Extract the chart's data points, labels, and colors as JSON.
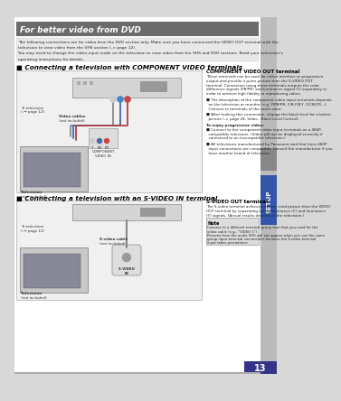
{
  "page_bg": "#d8d8d8",
  "content_bg": "#ffffff",
  "title_bar_color": "#6b6b6b",
  "title_text": "For better video from DVD",
  "title_text_color": "#ffffff",
  "header_bg": "#e8e8e8",
  "header_text_line1": "The following connections are for video from the DVD section only. Make sure you have connected the VIDEO OUT terminal with the",
  "header_text_line2": "television to view video from the VHS section (-> page 12).",
  "header_text_line3": "You may need to change the video-input mode on the television to view video from the VHS and DVD sections. Read your television's",
  "header_text_line4": "operating instructions for details.",
  "section1_title": "■ Connecting a television with COMPONENT VIDEO terminals",
  "section2_title": "■ Connecting a television with an S-VIDEO IN terminal",
  "right_tab_color": "#3355aa",
  "right_tab_text": "SETUP",
  "page_number": "13",
  "page_number_bg": "#333388",
  "sidebar_color": "#bbbbbb",
  "comp_video_title": "COMPONENT VIDEO OUT terminal",
  "svideo_title": "S-VIDEO OUT terminal",
  "svideo_text1": "The S-video terminal achieves a more vivid picture than the VIDEO",
  "svideo_text2": "OUT terminal by separating the chrominance (C) and luminance",
  "svideo_text3": "(Y) signals. (Actual results depend on the television.)",
  "note_label": "Note",
  "note_text1": "Connect to a different terminal group than that you used for the",
  "note_text2": "video cable (e.g., \"VIDEO 1\").",
  "note_text3": "Pictures from the audio VHS will not appear when you use the same",
  "note_text4": "group input terminal connections because the S-video terminal",
  "note_text5": "input takes precedence.",
  "comp_text1": "These terminals can be used for either interlace or progressive",
  "comp_text2": "output and provide a purer picture than the S-VIDEO OUT",
  "comp_text3": "terminal. Connection using these terminals outputs the color",
  "comp_text4": "difference signals (PB/PR) and luminance signal (Y) separately in",
  "comp_text5": "order to achieve high fidelity in reproducing colors.",
  "comp_bullet1": "■ The description of the component video input terminals depends",
  "comp_bullet1b": "  on the television or monitor (e.g. Y/PB/PR, Y/B-Y/R-Y, Y/CB/CR...).",
  "comp_bullet1c": "  Connect to terminals of the same color.",
  "comp_bullet2": "■ After making this connection, change the black level for a better",
  "comp_bullet2b": "  picture (-> page 28, Video - Black Level Control).",
  "comp_prog_title": "To enjoy progressive video:",
  "comp_prog1": "■ Connect to the component video input terminals on a 480P-",
  "comp_prog1b": "  compatible television. (Video will not be displayed correctly if",
  "comp_prog1c": "  connected to an incompatible television.)",
  "comp_prog2": "■ All televisions manufactured by Panasonic and that have 480P",
  "comp_prog2b": "  input connections are compatible. Consult the manufacturer if you",
  "comp_prog2c": "  have another brand of television."
}
